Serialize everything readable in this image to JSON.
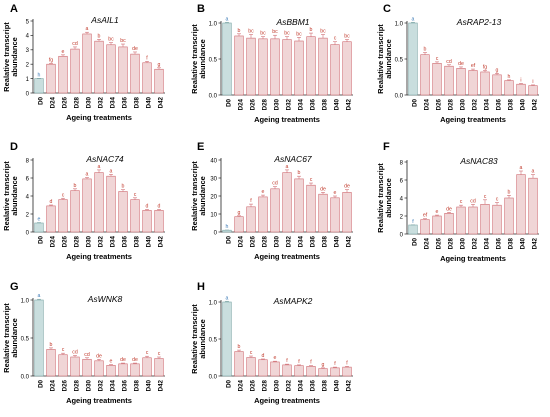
{
  "figure": {
    "xlabel": "Ageing treatments",
    "ylabel_lines": [
      "Realative transcript",
      "abundance"
    ],
    "colors": {
      "control": "#c9dede",
      "treatment": "#f0d5d6",
      "error": "#cf6d73",
      "letter": "#c0392b",
      "control_letter": "#3a78b5",
      "axis": "#222222"
    }
  },
  "chart_data": [
    {
      "panel": "A",
      "type": "bar",
      "title": "AsAIL1",
      "categories": [
        "D0",
        "D24",
        "D26",
        "D28",
        "D30",
        "D32",
        "D34",
        "D36",
        "D38",
        "D40",
        "D42"
      ],
      "values": [
        1.0,
        2.0,
        2.55,
        3.05,
        4.1,
        3.6,
        3.35,
        3.2,
        2.7,
        2.1,
        1.65
      ],
      "errors": [
        0.02,
        0.05,
        0.1,
        0.15,
        0.12,
        0.12,
        0.15,
        0.2,
        0.15,
        0.1,
        0.1
      ],
      "letters": [
        "h",
        "fg",
        "e",
        "cd",
        "a",
        "b",
        "bc",
        "bc",
        "de",
        "f",
        "g"
      ],
      "ylim": [
        0,
        5
      ],
      "yticks": [
        0,
        1,
        2,
        3,
        4,
        5
      ]
    },
    {
      "panel": "B",
      "type": "bar",
      "title": "AsBBM1",
      "categories": [
        "D0",
        "D24",
        "D26",
        "D28",
        "D30",
        "D32",
        "D34",
        "D36",
        "D38",
        "D40",
        "D42"
      ],
      "values": [
        1.0,
        0.82,
        0.79,
        0.78,
        0.78,
        0.77,
        0.75,
        0.81,
        0.79,
        0.7,
        0.74
      ],
      "errors": [
        0.01,
        0.03,
        0.05,
        0.03,
        0.05,
        0.04,
        0.05,
        0.05,
        0.05,
        0.04,
        0.03
      ],
      "letters": [
        "a",
        "b",
        "bc",
        "bc",
        "bc",
        "bc",
        "bc",
        "b",
        "bc",
        "c",
        "bc"
      ],
      "ylim": [
        0,
        1.0
      ],
      "yticks": [
        0.0,
        0.5,
        1.0
      ]
    },
    {
      "panel": "C",
      "type": "bar",
      "title": "AsRAP2-13",
      "categories": [
        "D0",
        "D24",
        "D26",
        "D28",
        "D30",
        "D32",
        "D34",
        "D36",
        "D38",
        "D40",
        "D42"
      ],
      "values": [
        1.0,
        0.56,
        0.44,
        0.4,
        0.37,
        0.34,
        0.32,
        0.28,
        0.2,
        0.15,
        0.13
      ],
      "errors": [
        0.01,
        0.03,
        0.02,
        0.02,
        0.02,
        0.02,
        0.02,
        0.02,
        0.01,
        0.01,
        0.01
      ],
      "letters": [
        "a",
        "b",
        "c",
        "cd",
        "de",
        "ef",
        "fg",
        "g",
        "h",
        "i",
        "i"
      ],
      "ylim": [
        0,
        1.0
      ],
      "yticks": [
        0.0,
        0.5,
        1.0
      ]
    },
    {
      "panel": "D",
      "type": "bar",
      "title": "AsNAC74",
      "categories": [
        "D0",
        "D24",
        "D26",
        "D28",
        "D30",
        "D32",
        "D34",
        "D36",
        "D38",
        "D40",
        "D42"
      ],
      "values": [
        1.0,
        2.9,
        3.6,
        4.6,
        5.9,
        6.6,
        6.2,
        4.5,
        3.6,
        2.4,
        2.4
      ],
      "errors": [
        0.05,
        0.1,
        0.15,
        0.2,
        0.15,
        0.3,
        0.2,
        0.2,
        0.2,
        0.1,
        0.1
      ],
      "letters": [
        "e",
        "d",
        "c",
        "b",
        "a",
        "a",
        "a",
        "b",
        "c",
        "d",
        "d"
      ],
      "ylim": [
        0,
        8
      ],
      "yticks": [
        0,
        2,
        4,
        6,
        8
      ]
    },
    {
      "panel": "E",
      "type": "bar",
      "title": "AsNAC67",
      "categories": [
        "D0",
        "D24",
        "D26",
        "D28",
        "D30",
        "D32",
        "D34",
        "D36",
        "D38",
        "D40",
        "D42"
      ],
      "values": [
        1.0,
        8.5,
        14.0,
        19.5,
        24.0,
        33.0,
        29.5,
        26.0,
        21.0,
        19.0,
        22.0
      ],
      "errors": [
        0.1,
        0.5,
        1.5,
        1.0,
        1.2,
        1.5,
        1.5,
        1.2,
        1.0,
        1.0,
        1.5
      ],
      "letters": [
        "h",
        "g",
        "f",
        "e",
        "cd",
        "a",
        "b",
        "c",
        "de",
        "e",
        "de"
      ],
      "ylim": [
        0,
        40
      ],
      "yticks": [
        0,
        10,
        20,
        30,
        40
      ]
    },
    {
      "panel": "F",
      "type": "bar",
      "title": "AsNAC83",
      "categories": [
        "D0",
        "D24",
        "D26",
        "D28",
        "D30",
        "D32",
        "D34",
        "D36",
        "D38",
        "D40",
        "D42"
      ],
      "values": [
        1.0,
        1.6,
        2.0,
        2.3,
        3.0,
        3.0,
        3.3,
        3.2,
        4.0,
        6.6,
        6.2
      ],
      "errors": [
        0.02,
        0.1,
        0.1,
        0.1,
        0.2,
        0.3,
        0.5,
        0.3,
        0.3,
        0.4,
        0.4
      ],
      "letters": [
        "f",
        "ef",
        "e",
        "de",
        "c",
        "cd",
        "c",
        "c",
        "b",
        "a",
        "a"
      ],
      "ylim": [
        0,
        8
      ],
      "yticks": [
        0,
        2,
        4,
        6,
        8
      ]
    },
    {
      "panel": "G",
      "type": "bar",
      "title": "AsWNK8",
      "categories": [
        "D0",
        "D24",
        "D26",
        "D28",
        "D30",
        "D32",
        "D34",
        "D36",
        "D38",
        "D40",
        "D42"
      ],
      "values": [
        1.0,
        0.35,
        0.28,
        0.25,
        0.22,
        0.2,
        0.14,
        0.16,
        0.16,
        0.24,
        0.23
      ],
      "errors": [
        0.01,
        0.02,
        0.02,
        0.02,
        0.02,
        0.02,
        0.01,
        0.01,
        0.01,
        0.02,
        0.02
      ],
      "letters": [
        "a",
        "b",
        "c",
        "cd",
        "cd",
        "de",
        "e",
        "de",
        "de",
        "c",
        "c"
      ],
      "ylim": [
        0,
        1.0
      ],
      "yticks": [
        0.0,
        0.5,
        1.0
      ]
    },
    {
      "panel": "H",
      "type": "bar",
      "title": "AsMAPK2",
      "categories": [
        "D0",
        "D24",
        "D26",
        "D28",
        "D30",
        "D32",
        "D34",
        "D36",
        "D38",
        "D40",
        "D42"
      ],
      "values": [
        1.0,
        0.33,
        0.25,
        0.22,
        0.19,
        0.15,
        0.14,
        0.13,
        0.1,
        0.11,
        0.12
      ],
      "errors": [
        0.01,
        0.02,
        0.02,
        0.01,
        0.01,
        0.01,
        0.01,
        0.01,
        0.01,
        0.01,
        0.01
      ],
      "letters": [
        "a",
        "b",
        "c",
        "d",
        "e",
        "f",
        "f",
        "f",
        "g",
        "f",
        "f"
      ],
      "ylim": [
        0,
        1.0
      ],
      "yticks": [
        0.0,
        0.5,
        1.0
      ]
    }
  ]
}
